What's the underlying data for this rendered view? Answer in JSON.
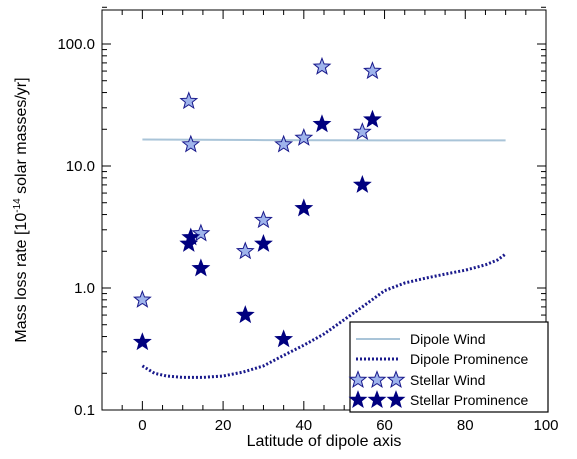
{
  "chart_data": {
    "type": "scatter",
    "xlabel": "Latitude of dipole axis",
    "ylabel_main": "Mass loss rate [10",
    "ylabel_sup": "-14",
    "ylabel_rest": " solar masses/yr]",
    "xlim": [
      -10,
      100
    ],
    "ylim": [
      0.1,
      250
    ],
    "yscale": "log",
    "x_ticks": [
      0,
      20,
      40,
      60,
      80,
      100
    ],
    "x_tick_labels": [
      "0",
      "20",
      "40",
      "60",
      "80",
      "100"
    ],
    "y_ticks": [
      0.1,
      1.0,
      10.0,
      100.0
    ],
    "y_tick_labels": [
      "0.1",
      "1.0",
      "10.0",
      "100.0"
    ],
    "grid": false,
    "legend_position": "bottom-right",
    "series": [
      {
        "name": "Dipole Wind",
        "style": "line",
        "color": "#a9c4d8",
        "x": [
          0,
          30,
          60,
          90
        ],
        "y": [
          16.5,
          16.3,
          16.2,
          16.2
        ]
      },
      {
        "name": "Dipole Prominence",
        "style": "dotted-line",
        "color": "#1a1a8c",
        "x": [
          0,
          3,
          6,
          10,
          15,
          20,
          25,
          30,
          35,
          40,
          45,
          50,
          55,
          60,
          65,
          70,
          75,
          80,
          85,
          88,
          90
        ],
        "y": [
          0.23,
          0.2,
          0.19,
          0.185,
          0.185,
          0.19,
          0.205,
          0.23,
          0.28,
          0.34,
          0.42,
          0.55,
          0.72,
          0.95,
          1.1,
          1.2,
          1.3,
          1.4,
          1.55,
          1.7,
          1.9
        ]
      },
      {
        "name": "Stellar Wind",
        "style": "star-open",
        "color": "#9fb4ec",
        "x": [
          0,
          11.5,
          12,
          14.5,
          25.5,
          30,
          35,
          40,
          44.5,
          54.5,
          57
        ],
        "y": [
          0.8,
          34,
          15,
          2.8,
          2.0,
          3.6,
          15,
          17,
          65,
          19,
          60
        ]
      },
      {
        "name": "Stellar Prominence",
        "style": "star-filled",
        "color": "#00007f",
        "x": [
          0,
          11.5,
          12,
          14.5,
          25.5,
          30,
          35,
          40,
          44.5,
          54.5,
          57
        ],
        "y": [
          0.36,
          2.3,
          2.6,
          1.45,
          0.6,
          2.3,
          0.38,
          4.5,
          22,
          7.0,
          24
        ]
      }
    ]
  }
}
